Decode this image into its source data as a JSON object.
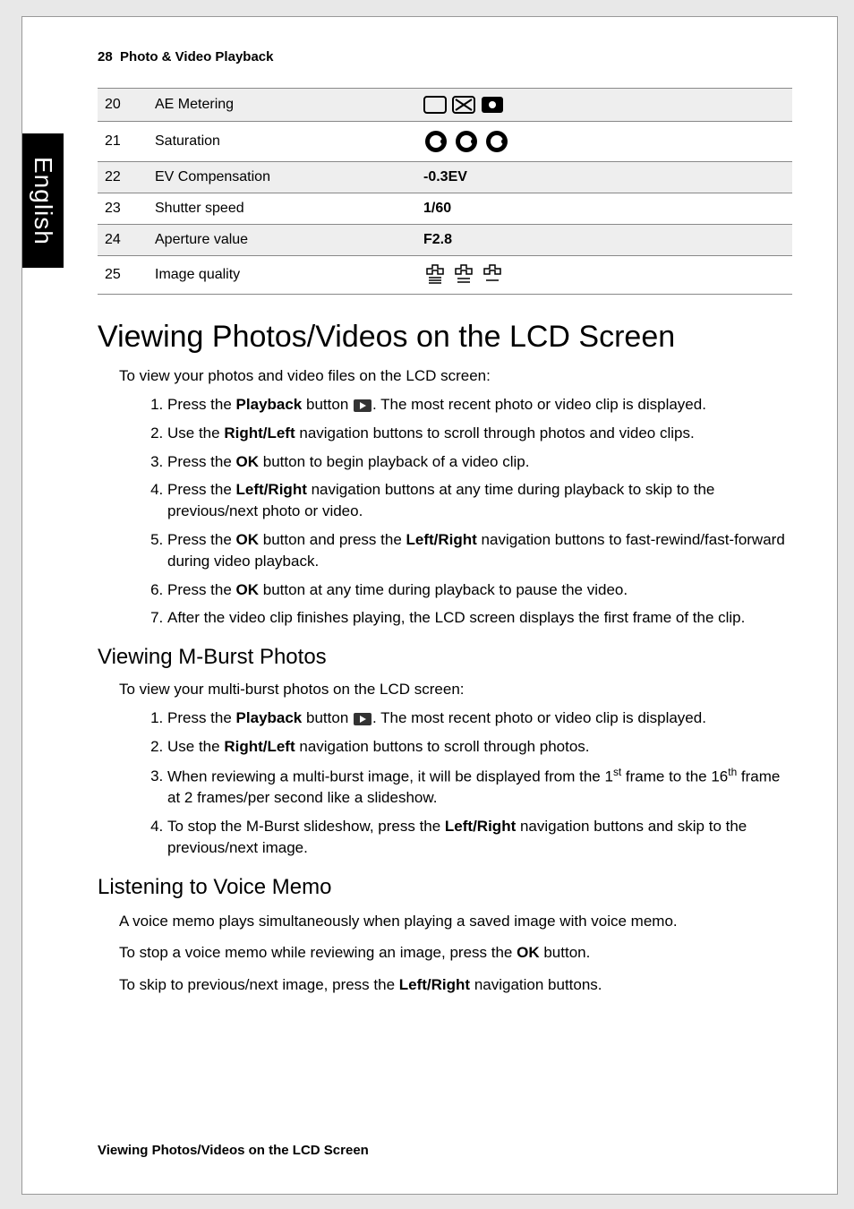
{
  "sideTab": "English",
  "header": {
    "page": "28",
    "title": "Photo & Video Playback"
  },
  "table": {
    "rows": [
      {
        "n": "20",
        "label": "AE Metering",
        "value": "",
        "icons": "metering",
        "shade": true
      },
      {
        "n": "21",
        "label": "Saturation",
        "value": "",
        "icons": "saturation",
        "shade": false
      },
      {
        "n": "22",
        "label": "EV Compensation",
        "value": "-0.3EV",
        "icons": "",
        "shade": true
      },
      {
        "n": "23",
        "label": "Shutter speed",
        "value": "1/60",
        "icons": "",
        "shade": false
      },
      {
        "n": "24",
        "label": "Aperture value",
        "value": "F2.8",
        "icons": "",
        "shade": true
      },
      {
        "n": "25",
        "label": "Image quality",
        "value": "",
        "icons": "quality",
        "shade": false
      }
    ]
  },
  "h1": "Viewing Photos/Videos on the LCD Screen",
  "intro1": "To view your photos and video files on the LCD screen:",
  "steps1": [
    "Press the <b>Playback</b> button {PB}. The most recent photo or video clip is displayed.",
    "Use the <b>Right/Left</b> navigation buttons to scroll through photos and video clips.",
    "Press the <b>OK</b> button to begin playback of a video clip.",
    "Press the <b>Left/Right</b> navigation buttons at any time during playback to skip to the previous/next photo or video.",
    "Press the <b>OK</b> button and press the <b>Left/Right</b> navigation buttons to fast-rewind/fast-forward during video playback.",
    "Press the <b>OK</b> button at any time during playback to pause the video.",
    "After the video clip finishes playing, the LCD screen displays the first frame of the clip."
  ],
  "h2a": "Viewing M-Burst Photos",
  "intro2": "To view your multi-burst photos on the LCD screen:",
  "steps2": [
    "Press the <b>Playback</b> button {PB}. The most recent photo or video clip is displayed.",
    "Use the <b>Right/Left</b> navigation buttons to scroll through photos.",
    "When reviewing a multi-burst image, it will be displayed from the 1<sup>st</sup> frame to the 16<sup>th</sup> frame at 2 frames/per second like a slideshow.",
    "To stop the M-Burst slideshow, press the <b>Left/Right</b> navigation buttons and skip to the previous/next image."
  ],
  "h2b": "Listening to Voice Memo",
  "voice": [
    "A voice memo plays simultaneously when playing a saved image with voice memo.",
    "To stop a voice memo while reviewing an image, press the <b>OK</b> button.",
    "To skip to previous/next image, press the <b>Left/Right</b> navigation buttons."
  ],
  "footer": "Viewing Photos/Videos on the LCD Screen"
}
